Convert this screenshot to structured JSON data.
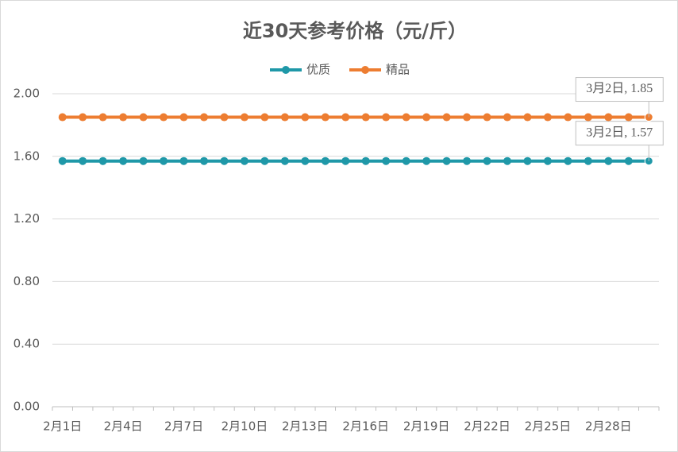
{
  "chart_data": {
    "type": "line",
    "title": "近30天参考价格（元/斤）",
    "categories": [
      "2月1日",
      null,
      null,
      "2月4日",
      null,
      null,
      "2月7日",
      null,
      null,
      "2月10日",
      null,
      null,
      "2月13日",
      null,
      null,
      "2月16日",
      null,
      null,
      "2月19日",
      null,
      null,
      "2月22日",
      null,
      null,
      "2月25日",
      null,
      null,
      "2月28日",
      null,
      null
    ],
    "series": [
      {
        "name": "优质",
        "color": "#1f98a8",
        "values": [
          1.57,
          1.57,
          1.57,
          1.57,
          1.57,
          1.57,
          1.57,
          1.57,
          1.57,
          1.57,
          1.57,
          1.57,
          1.57,
          1.57,
          1.57,
          1.57,
          1.57,
          1.57,
          1.57,
          1.57,
          1.57,
          1.57,
          1.57,
          1.57,
          1.57,
          1.57,
          1.57,
          1.57,
          1.57,
          1.57
        ],
        "value_labels": [
          null,
          null,
          null,
          null,
          null,
          null,
          null,
          null,
          null,
          null,
          null,
          null,
          null,
          null,
          null,
          null,
          null,
          null,
          null,
          null,
          null,
          null,
          null,
          null,
          null,
          null,
          null,
          null,
          null,
          "3月2日, 1.57"
        ]
      },
      {
        "name": "精品",
        "color": "#ed7d31",
        "values": [
          1.85,
          1.85,
          1.85,
          1.85,
          1.85,
          1.85,
          1.85,
          1.85,
          1.85,
          1.85,
          1.85,
          1.85,
          1.85,
          1.85,
          1.85,
          1.85,
          1.85,
          1.85,
          1.85,
          1.85,
          1.85,
          1.85,
          1.85,
          1.85,
          1.85,
          1.85,
          1.85,
          1.85,
          1.85,
          1.85
        ],
        "value_labels": [
          null,
          null,
          null,
          null,
          null,
          null,
          null,
          null,
          null,
          null,
          null,
          null,
          null,
          null,
          null,
          null,
          null,
          null,
          null,
          null,
          null,
          null,
          null,
          null,
          null,
          null,
          null,
          null,
          null,
          "3月2日, 1.85"
        ]
      }
    ],
    "ylim": [
      0,
      2
    ],
    "yticks": [
      {
        "value": 0,
        "label": "0.00"
      },
      {
        "value": 0.4,
        "label": "0.40"
      },
      {
        "value": 0.8,
        "label": "0.80"
      },
      {
        "value": 1.2,
        "label": "1.20"
      },
      {
        "value": 1.6,
        "label": "1.60"
      },
      {
        "value": 2,
        "label": "2.00"
      }
    ],
    "grid": true,
    "legend": "top"
  }
}
